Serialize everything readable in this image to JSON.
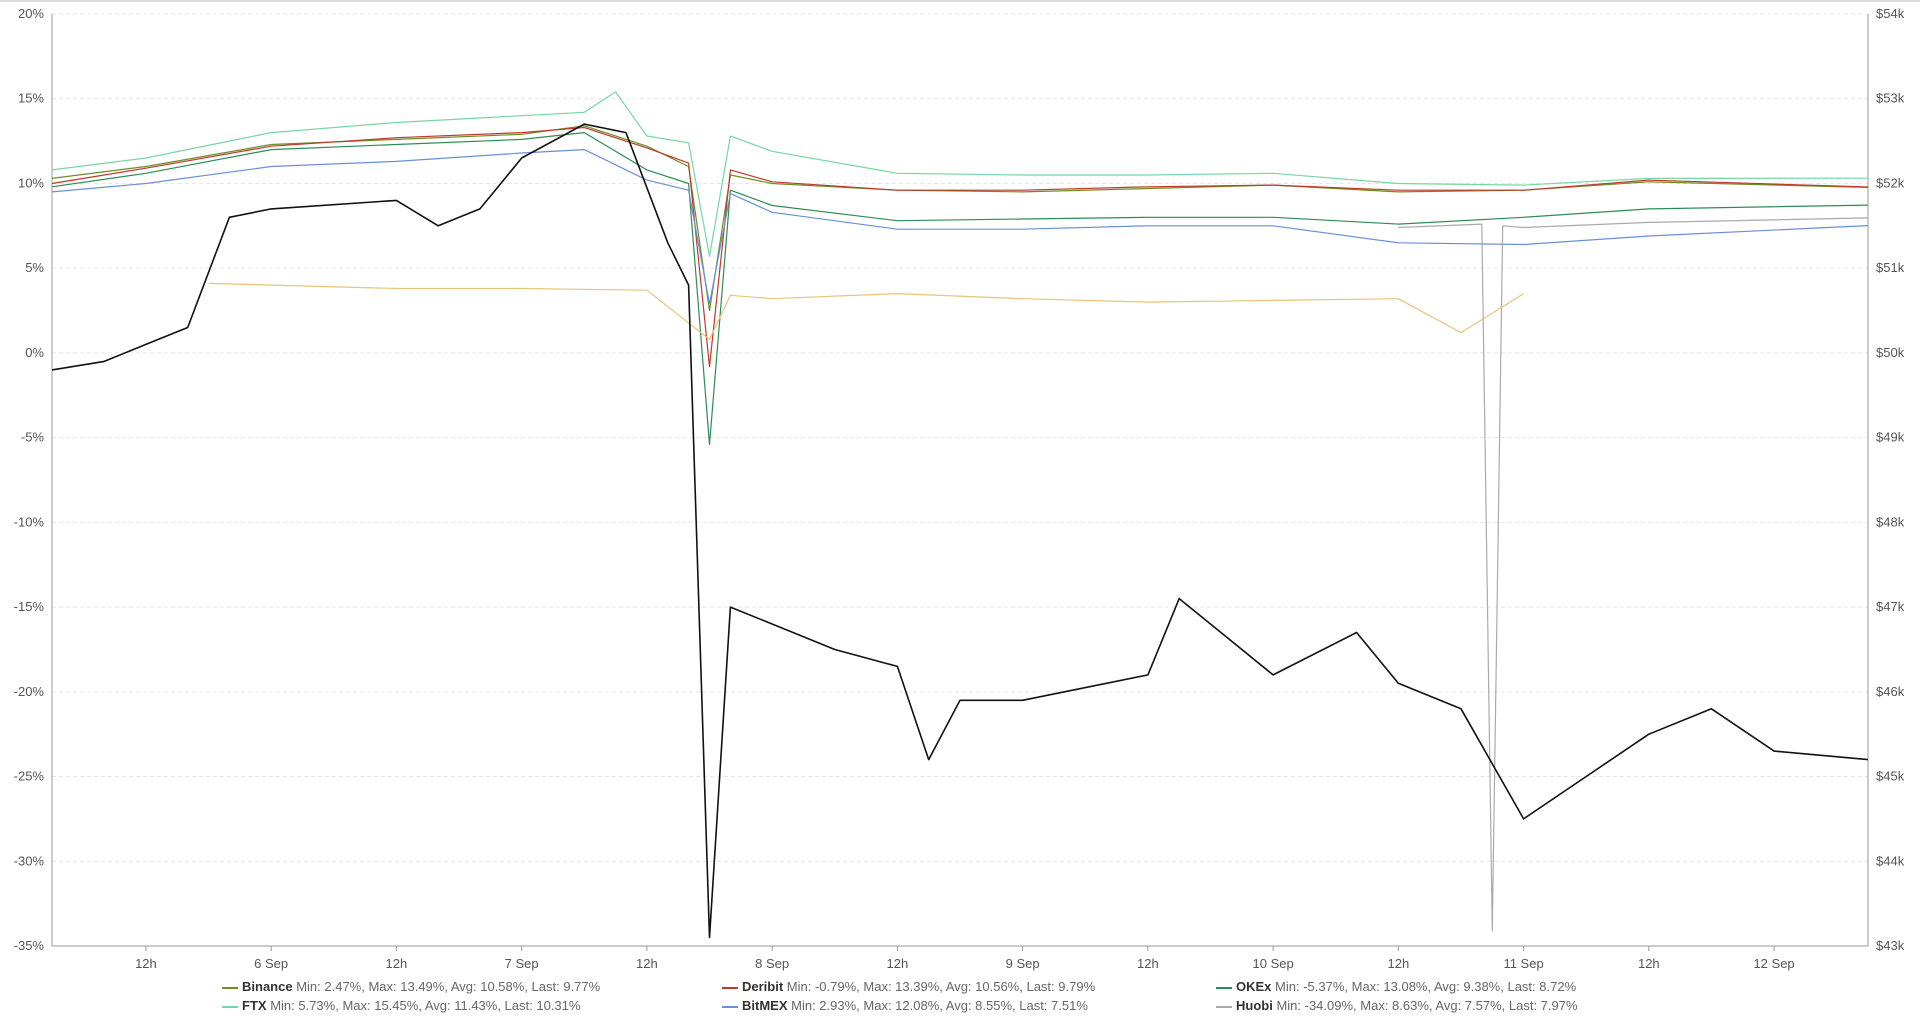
{
  "chart_data": {
    "type": "line",
    "title": "",
    "xlabel": "",
    "ylabel": "",
    "x_ticks": [
      "12h",
      "6 Sep",
      "12h",
      "7 Sep",
      "12h",
      "8 Sep",
      "12h",
      "9 Sep",
      "12h",
      "10 Sep",
      "12h",
      "11 Sep",
      "12h",
      "12 Sep"
    ],
    "y_left": {
      "unit": "percent",
      "ticks": [
        "20%",
        "15%",
        "10%",
        "5%",
        "0%",
        "-5%",
        "-10%",
        "-15%",
        "-20%",
        "-25%",
        "-30%",
        "-35%"
      ],
      "ylim": [
        -35,
        20
      ]
    },
    "y_right": {
      "unit": "usd",
      "ticks": [
        "$54k",
        "$53k",
        "$52k",
        "$51k",
        "$50k",
        "$49k",
        "$48k",
        "$47k",
        "$46k",
        "$45k",
        "$44k",
        "$43k"
      ],
      "ylim": [
        43000,
        54000
      ]
    },
    "grid": true,
    "legend_position": "bottom",
    "time_axis": {
      "start": "2021-09-05 03:00",
      "end": "2021-09-12 09:00",
      "ticks": [
        "2021-09-05 12:00",
        "2021-09-06 00:00",
        "2021-09-06 12:00",
        "2021-09-07 00:00",
        "2021-09-07 12:00",
        "2021-09-08 00:00",
        "2021-09-08 12:00",
        "2021-09-09 00:00",
        "2021-09-09 12:00",
        "2021-09-10 00:00",
        "2021-09-10 12:00",
        "2021-09-11 00:00",
        "2021-09-11 12:00",
        "2021-09-12 00:00"
      ]
    },
    "series": [
      {
        "name": "Binance",
        "axis": "left",
        "color": "#6b8e23",
        "stats": "Min: 2.47%, Max: 13.49%, Avg: 10.58%, Last: 9.77%",
        "points": [
          [
            "2021-09-05 03:00",
            10.3
          ],
          [
            "2021-09-05 12:00",
            11.0
          ],
          [
            "2021-09-06 00:00",
            12.3
          ],
          [
            "2021-09-06 12:00",
            12.6
          ],
          [
            "2021-09-07 00:00",
            12.9
          ],
          [
            "2021-09-07 06:00",
            13.4
          ],
          [
            "2021-09-07 12:00",
            12.2
          ],
          [
            "2021-09-07 16:00",
            11.0
          ],
          [
            "2021-09-07 18:00",
            2.5
          ],
          [
            "2021-09-07 20:00",
            10.5
          ],
          [
            "2021-09-08 00:00",
            10.0
          ],
          [
            "2021-09-08 12:00",
            9.6
          ],
          [
            "2021-09-09 00:00",
            9.5
          ],
          [
            "2021-09-09 12:00",
            9.7
          ],
          [
            "2021-09-10 00:00",
            9.9
          ],
          [
            "2021-09-10 12:00",
            9.5
          ],
          [
            "2021-09-11 00:00",
            9.6
          ],
          [
            "2021-09-11 12:00",
            10.1
          ],
          [
            "2021-09-12 09:00",
            9.77
          ]
        ]
      },
      {
        "name": "Deribit",
        "axis": "left",
        "color": "#c0392b",
        "stats": "Min: -0.79%, Max: 13.39%, Avg: 10.56%, Last: 9.79%",
        "points": [
          [
            "2021-09-05 03:00",
            10.0
          ],
          [
            "2021-09-05 12:00",
            10.9
          ],
          [
            "2021-09-06 00:00",
            12.2
          ],
          [
            "2021-09-06 12:00",
            12.7
          ],
          [
            "2021-09-07 00:00",
            13.0
          ],
          [
            "2021-09-07 06:00",
            13.3
          ],
          [
            "2021-09-07 12:00",
            12.1
          ],
          [
            "2021-09-07 16:00",
            11.2
          ],
          [
            "2021-09-07 18:00",
            -0.8
          ],
          [
            "2021-09-07 20:00",
            10.8
          ],
          [
            "2021-09-08 00:00",
            10.1
          ],
          [
            "2021-09-08 12:00",
            9.6
          ],
          [
            "2021-09-09 00:00",
            9.6
          ],
          [
            "2021-09-09 12:00",
            9.8
          ],
          [
            "2021-09-10 00:00",
            9.9
          ],
          [
            "2021-09-10 12:00",
            9.6
          ],
          [
            "2021-09-11 00:00",
            9.6
          ],
          [
            "2021-09-11 12:00",
            10.2
          ],
          [
            "2021-09-12 09:00",
            9.79
          ]
        ]
      },
      {
        "name": "OKEx",
        "axis": "left",
        "color": "#2e8b57",
        "stats": "Min: -5.37%, Max: 13.08%, Avg: 9.38%, Last: 8.72%",
        "points": [
          [
            "2021-09-05 03:00",
            9.8
          ],
          [
            "2021-09-05 12:00",
            10.6
          ],
          [
            "2021-09-06 00:00",
            12.0
          ],
          [
            "2021-09-06 12:00",
            12.3
          ],
          [
            "2021-09-07 00:00",
            12.6
          ],
          [
            "2021-09-07 06:00",
            13.0
          ],
          [
            "2021-09-07 12:00",
            10.8
          ],
          [
            "2021-09-07 16:00",
            10.0
          ],
          [
            "2021-09-07 18:00",
            -5.4
          ],
          [
            "2021-09-07 20:00",
            9.6
          ],
          [
            "2021-09-08 00:00",
            8.7
          ],
          [
            "2021-09-08 12:00",
            7.8
          ],
          [
            "2021-09-09 00:00",
            7.9
          ],
          [
            "2021-09-09 12:00",
            8.0
          ],
          [
            "2021-09-10 00:00",
            8.0
          ],
          [
            "2021-09-10 12:00",
            7.6
          ],
          [
            "2021-09-11 00:00",
            8.0
          ],
          [
            "2021-09-11 12:00",
            8.5
          ],
          [
            "2021-09-12 09:00",
            8.72
          ]
        ]
      },
      {
        "name": "FTX",
        "axis": "left",
        "color": "#76d7a4",
        "stats": "Min: 5.73%, Max: 15.45%, Avg: 11.43%, Last: 10.31%",
        "points": [
          [
            "2021-09-05 03:00",
            10.8
          ],
          [
            "2021-09-05 12:00",
            11.5
          ],
          [
            "2021-09-06 00:00",
            13.0
          ],
          [
            "2021-09-06 12:00",
            13.6
          ],
          [
            "2021-09-07 00:00",
            14.0
          ],
          [
            "2021-09-07 06:00",
            14.2
          ],
          [
            "2021-09-07 09:00",
            15.4
          ],
          [
            "2021-09-07 12:00",
            12.8
          ],
          [
            "2021-09-07 16:00",
            12.4
          ],
          [
            "2021-09-07 18:00",
            5.7
          ],
          [
            "2021-09-07 20:00",
            12.8
          ],
          [
            "2021-09-08 00:00",
            11.9
          ],
          [
            "2021-09-08 12:00",
            10.6
          ],
          [
            "2021-09-09 00:00",
            10.5
          ],
          [
            "2021-09-09 12:00",
            10.5
          ],
          [
            "2021-09-10 00:00",
            10.6
          ],
          [
            "2021-09-10 12:00",
            10.0
          ],
          [
            "2021-09-11 00:00",
            9.9
          ],
          [
            "2021-09-11 12:00",
            10.3
          ],
          [
            "2021-09-12 09:00",
            10.31
          ]
        ]
      },
      {
        "name": "BitMEX",
        "axis": "left",
        "color": "#6a8fd8",
        "stats": "Min: 2.93%, Max: 12.08%, Avg: 8.55%, Last: 7.51%",
        "points": [
          [
            "2021-09-05 03:00",
            9.5
          ],
          [
            "2021-09-05 12:00",
            10.0
          ],
          [
            "2021-09-06 00:00",
            11.0
          ],
          [
            "2021-09-06 12:00",
            11.3
          ],
          [
            "2021-09-07 00:00",
            11.8
          ],
          [
            "2021-09-07 06:00",
            12.0
          ],
          [
            "2021-09-07 12:00",
            10.2
          ],
          [
            "2021-09-07 16:00",
            9.6
          ],
          [
            "2021-09-07 18:00",
            2.9
          ],
          [
            "2021-09-07 20:00",
            9.4
          ],
          [
            "2021-09-08 00:00",
            8.3
          ],
          [
            "2021-09-08 12:00",
            7.3
          ],
          [
            "2021-09-09 00:00",
            7.3
          ],
          [
            "2021-09-09 12:00",
            7.5
          ],
          [
            "2021-09-10 00:00",
            7.5
          ],
          [
            "2021-09-10 12:00",
            6.5
          ],
          [
            "2021-09-11 00:00",
            6.4
          ],
          [
            "2021-09-11 12:00",
            6.9
          ],
          [
            "2021-09-12 09:00",
            7.51
          ]
        ]
      },
      {
        "name": "Huobi",
        "axis": "left",
        "color": "#aaaaaa",
        "stats": "Min: -34.09%, Max: 8.63%, Avg: 7.57%, Last: 7.97%",
        "points": [
          [
            "2021-09-10 12:00",
            7.4
          ],
          [
            "2021-09-10 20:00",
            7.6
          ],
          [
            "2021-09-10 21:00",
            -34.1
          ],
          [
            "2021-09-10 22:00",
            7.5
          ],
          [
            "2021-09-11 00:00",
            7.4
          ],
          [
            "2021-09-11 12:00",
            7.7
          ],
          [
            "2021-09-12 09:00",
            7.97
          ]
        ]
      },
      {
        "name": "",
        "axis": "left",
        "color": "#e8c47a",
        "stats": "",
        "points": [
          [
            "2021-09-05 18:00",
            4.1
          ],
          [
            "2021-09-06 12:00",
            3.8
          ],
          [
            "2021-09-07 00:00",
            3.8
          ],
          [
            "2021-09-07 12:00",
            3.7
          ],
          [
            "2021-09-07 18:00",
            0.8
          ],
          [
            "2021-09-07 20:00",
            3.4
          ],
          [
            "2021-09-08 00:00",
            3.2
          ],
          [
            "2021-09-08 12:00",
            3.5
          ],
          [
            "2021-09-09 00:00",
            3.2
          ],
          [
            "2021-09-09 12:00",
            3.0
          ],
          [
            "2021-09-10 00:00",
            3.1
          ],
          [
            "2021-09-10 12:00",
            3.2
          ],
          [
            "2021-09-10 18:00",
            1.2
          ],
          [
            "2021-09-11 00:00",
            3.5
          ]
        ]
      },
      {
        "name": "",
        "axis": "right",
        "color": "#111111",
        "stats": "",
        "points": [
          [
            "2021-09-05 03:00",
            49800
          ],
          [
            "2021-09-05 08:00",
            49900
          ],
          [
            "2021-09-05 12:00",
            50100
          ],
          [
            "2021-09-05 16:00",
            50300
          ],
          [
            "2021-09-05 20:00",
            51600
          ],
          [
            "2021-09-06 00:00",
            51700
          ],
          [
            "2021-09-06 12:00",
            51800
          ],
          [
            "2021-09-06 16:00",
            51500
          ],
          [
            "2021-09-06 20:00",
            51700
          ],
          [
            "2021-09-07 00:00",
            52300
          ],
          [
            "2021-09-07 06:00",
            52700
          ],
          [
            "2021-09-07 10:00",
            52600
          ],
          [
            "2021-09-07 14:00",
            51300
          ],
          [
            "2021-09-07 16:00",
            50800
          ],
          [
            "2021-09-07 18:00",
            43100
          ],
          [
            "2021-09-07 20:00",
            47000
          ],
          [
            "2021-09-08 00:00",
            46800
          ],
          [
            "2021-09-08 06:00",
            46500
          ],
          [
            "2021-09-08 12:00",
            46300
          ],
          [
            "2021-09-08 15:00",
            45200
          ],
          [
            "2021-09-08 18:00",
            45900
          ],
          [
            "2021-09-09 00:00",
            45900
          ],
          [
            "2021-09-09 12:00",
            46200
          ],
          [
            "2021-09-09 15:00",
            47100
          ],
          [
            "2021-09-09 20:00",
            46600
          ],
          [
            "2021-09-10 00:00",
            46200
          ],
          [
            "2021-09-10 08:00",
            46700
          ],
          [
            "2021-09-10 12:00",
            46100
          ],
          [
            "2021-09-10 18:00",
            45800
          ],
          [
            "2021-09-11 00:00",
            44500
          ],
          [
            "2021-09-11 06:00",
            45000
          ],
          [
            "2021-09-11 12:00",
            45500
          ],
          [
            "2021-09-11 18:00",
            45800
          ],
          [
            "2021-09-12 00:00",
            45300
          ],
          [
            "2021-09-12 09:00",
            45200
          ]
        ]
      }
    ]
  },
  "legend_items": [
    {
      "name": "Binance",
      "stats": "Min: 2.47%, Max: 13.49%, Avg: 10.58%, Last: 9.77%",
      "color": "#6b8e23"
    },
    {
      "name": "Deribit",
      "stats": "Min: -0.79%, Max: 13.39%, Avg: 10.56%, Last: 9.79%",
      "color": "#c0392b"
    },
    {
      "name": "OKEx",
      "stats": "Min: -5.37%, Max: 13.08%, Avg: 9.38%, Last: 8.72%",
      "color": "#2e8b57"
    },
    {
      "name": "FTX",
      "stats": "Min: 5.73%, Max: 15.45%, Avg: 11.43%, Last: 10.31%",
      "color": "#76d7a4"
    },
    {
      "name": "BitMEX",
      "stats": "Min: 2.93%, Max: 12.08%, Avg: 8.55%, Last: 7.51%",
      "color": "#6a8fd8"
    },
    {
      "name": "Huobi",
      "stats": "Min: -34.09%, Max: 8.63%, Avg: 7.57%, Last: 7.97%",
      "color": "#aaaaaa"
    }
  ]
}
